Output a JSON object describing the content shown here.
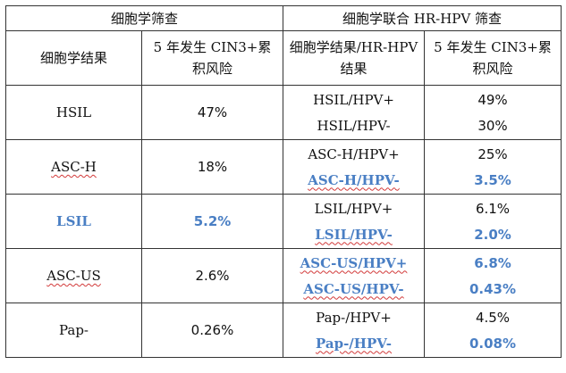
{
  "header": {
    "group_left": "细胞学筛查",
    "group_right": "细胞学联合 HR-HPV 筛查",
    "col1": "细胞学结果",
    "col2": "5 年发生 CIN3+累积风险",
    "col3": "细胞学结果/HR-HPV 结果",
    "col4": "5 年发生 CIN3+累积风险"
  },
  "rows": [
    {
      "cyto": "HSIL",
      "risk": "47%",
      "sub": [
        {
          "result": "HSIL/HPV+",
          "risk": "49%"
        },
        {
          "result": "HSIL/HPV-",
          "risk": "30%"
        }
      ]
    },
    {
      "cyto": "ASC-H",
      "risk": "18%",
      "sub": [
        {
          "result": "ASC-H/HPV+",
          "risk": "25%"
        },
        {
          "result": "ASC-H/HPV-",
          "risk": "3.5%"
        }
      ]
    },
    {
      "cyto": "LSIL",
      "risk": "5.2%",
      "sub": [
        {
          "result": "LSIL/HPV+",
          "risk": "6.1%"
        },
        {
          "result": "LSIL/HPV-",
          "risk": "2.0%"
        }
      ]
    },
    {
      "cyto": "ASC-US",
      "risk": "2.6%",
      "sub": [
        {
          "result": "ASC-US/HPV+",
          "risk": "6.8%"
        },
        {
          "result": "ASC-US/HPV-",
          "risk": "0.43%"
        }
      ]
    },
    {
      "cyto": "Pap-",
      "risk": "0.26%",
      "sub": [
        {
          "result": "Pap-/HPV+",
          "risk": "4.5%"
        },
        {
          "result": "Pap-/HPV-",
          "risk": "0.08%"
        }
      ]
    }
  ],
  "colors": {
    "highlight": "#4a7fc4",
    "border": "#333333",
    "spellcheck": "#d23a3a"
  }
}
